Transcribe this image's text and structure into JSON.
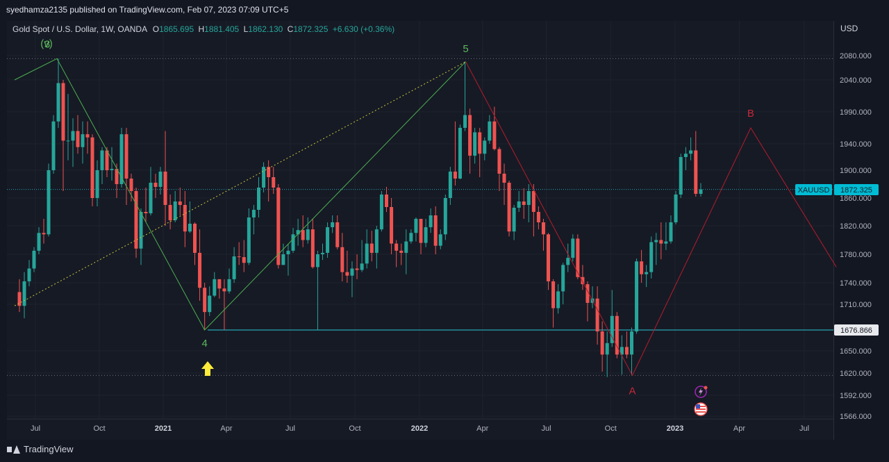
{
  "publisher_line": "syedhamza2135 published on TradingView.com, Feb 07, 2023 07:09 UTC+5",
  "brand": "TradingView",
  "legend": {
    "title": "Gold Spot / U.S. Dollar, 1W, OANDA",
    "o_label": "O",
    "o": "1865.695",
    "h_label": "H",
    "h": "1881.405",
    "l_label": "L",
    "l": "1862.130",
    "c_label": "C",
    "c": "1872.325",
    "change": "+6.630 (+0.36%)"
  },
  "currency": "USD",
  "colors": {
    "up": "#26a69a",
    "down": "#ef5350",
    "grid": "#1e222d",
    "level": "#26c6da",
    "wave_green": "#4caf50",
    "wave_red": "#b71c2c",
    "dotted_yellow": "#c9c93a",
    "arrow": "#ffeb3b",
    "label_bg": "#00bcd4"
  },
  "price_tags": {
    "symbol": "XAUUSD",
    "last": "1872.325",
    "level": "1676.866"
  },
  "icons": [
    "lightning-icon",
    "us-flag-icon",
    "arrow-up-icon",
    "tradingview-logo-icon"
  ],
  "chart_data": {
    "type": "candlestick",
    "symbol": "XAUUSD",
    "interval": "1W",
    "y_ticks": [
      2080,
      2040,
      1990,
      1940,
      1900,
      1860,
      1820,
      1780,
      1740,
      1710,
      1676.866,
      1650,
      1620,
      1592,
      1566
    ],
    "y_tick_labels": [
      "2080.000",
      "2040.000",
      "1990.000",
      "1940.000",
      "1900.000",
      "1860.000",
      "1820.000",
      "1780.000",
      "1740.000",
      "1710.000",
      "1676.866",
      "1650.000",
      "1620.000",
      "1592.000",
      "1566.000"
    ],
    "x_axis": [
      {
        "label": "Jul",
        "date": "2020-07-01",
        "year": false
      },
      {
        "label": "Oct",
        "date": "2020-10-01",
        "year": false
      },
      {
        "label": "2021",
        "date": "2021-01-01",
        "year": true
      },
      {
        "label": "Apr",
        "date": "2021-04-01",
        "year": false
      },
      {
        "label": "Jul",
        "date": "2021-07-01",
        "year": false
      },
      {
        "label": "Oct",
        "date": "2021-10-01",
        "year": false
      },
      {
        "label": "2022",
        "date": "2022-01-01",
        "year": true
      },
      {
        "label": "Apr",
        "date": "2022-04-01",
        "year": false
      },
      {
        "label": "Jul",
        "date": "2022-07-01",
        "year": false
      },
      {
        "label": "Oct",
        "date": "2022-10-01",
        "year": false
      },
      {
        "label": "2023",
        "date": "2023-01-01",
        "year": true
      },
      {
        "label": "Apr",
        "date": "2023-04-01",
        "year": false
      },
      {
        "label": "Jul",
        "date": "2023-07-01",
        "year": false
      }
    ],
    "horizontal_levels": [
      {
        "price": 1676.866,
        "style": "solid",
        "label": "1676.866"
      },
      {
        "price": 1872.325,
        "style": "dotted",
        "label": "1872.325"
      },
      {
        "price": 2075,
        "style": "dotted"
      },
      {
        "price": 1617,
        "style": "dotted"
      }
    ],
    "wave_labels": [
      {
        "text": "3",
        "date": "2020-08-01",
        "price": 2075,
        "color": "green"
      },
      {
        "text": "(v)",
        "date": "2020-08-08",
        "price": 2075,
        "color": "green"
      },
      {
        "text": "4",
        "date": "2021-03-01",
        "price": 1676.866,
        "color": "green"
      },
      {
        "text": "5",
        "date": "2022-03-08",
        "price": 2070,
        "color": "green"
      },
      {
        "text": "A",
        "date": "2022-11-01",
        "price": 1617,
        "color": "red"
      },
      {
        "text": "B",
        "date": "2023-04-17",
        "price": 1965,
        "color": "red"
      }
    ],
    "wave_lines": [
      {
        "color": "green",
        "style": "solid",
        "points": [
          [
            "2020-06-01",
            2040
          ],
          [
            "2020-08-01",
            2075
          ],
          [
            "2021-03-01",
            1676.866
          ],
          [
            "2022-03-08",
            2070
          ]
        ]
      },
      {
        "color": "yellow",
        "style": "dotted",
        "points": [
          [
            "2020-06-01",
            1708
          ],
          [
            "2022-03-08",
            2070
          ]
        ]
      },
      {
        "color": "red",
        "style": "solid",
        "points": [
          [
            "2022-03-08",
            2070
          ],
          [
            "2022-11-01",
            1617
          ],
          [
            "2023-04-17",
            1965
          ],
          [
            "2023-08-15",
            1762
          ]
        ]
      }
    ],
    "candles": [
      [
        "2020-06-08",
        1727,
        1745,
        1700,
        1708
      ],
      [
        "2020-06-15",
        1708,
        1755,
        1692,
        1742
      ],
      [
        "2020-06-22",
        1742,
        1772,
        1735,
        1760
      ],
      [
        "2020-06-29",
        1760,
        1790,
        1755,
        1785
      ],
      [
        "2020-07-06",
        1785,
        1818,
        1780,
        1810
      ],
      [
        "2020-07-13",
        1810,
        1830,
        1795,
        1808
      ],
      [
        "2020-07-20",
        1808,
        1910,
        1805,
        1900
      ],
      [
        "2020-07-27",
        1900,
        1985,
        1895,
        1975
      ],
      [
        "2020-08-03",
        1975,
        2075,
        1965,
        2035
      ],
      [
        "2020-08-10",
        2035,
        2040,
        1870,
        1945
      ],
      [
        "2020-08-17",
        1945,
        2018,
        1915,
        1945
      ],
      [
        "2020-08-24",
        1945,
        1980,
        1905,
        1960
      ],
      [
        "2020-08-31",
        1960,
        1985,
        1925,
        1935
      ],
      [
        "2020-09-07",
        1935,
        1975,
        1910,
        1955
      ],
      [
        "2020-09-14",
        1955,
        1975,
        1925,
        1950
      ],
      [
        "2020-09-21",
        1950,
        1955,
        1848,
        1860
      ],
      [
        "2020-09-28",
        1860,
        1915,
        1848,
        1900
      ],
      [
        "2020-10-05",
        1900,
        1935,
        1880,
        1930
      ],
      [
        "2020-10-12",
        1930,
        1935,
        1890,
        1900
      ],
      [
        "2020-10-19",
        1900,
        1935,
        1885,
        1902
      ],
      [
        "2020-10-26",
        1902,
        1910,
        1860,
        1880
      ],
      [
        "2020-11-02",
        1880,
        1965,
        1875,
        1955
      ],
      [
        "2020-11-09",
        1955,
        1965,
        1850,
        1888
      ],
      [
        "2020-11-16",
        1888,
        1895,
        1855,
        1870
      ],
      [
        "2020-11-23",
        1870,
        1875,
        1775,
        1788
      ],
      [
        "2020-11-30",
        1788,
        1845,
        1765,
        1840
      ],
      [
        "2020-12-07",
        1840,
        1875,
        1825,
        1838
      ],
      [
        "2020-12-14",
        1838,
        1905,
        1835,
        1882
      ],
      [
        "2020-12-21",
        1882,
        1895,
        1860,
        1876
      ],
      [
        "2020-12-28",
        1876,
        1905,
        1865,
        1898
      ],
      [
        "2021-01-04",
        1898,
        1960,
        1820,
        1850
      ],
      [
        "2021-01-11",
        1850,
        1865,
        1815,
        1828
      ],
      [
        "2021-01-18",
        1828,
        1870,
        1825,
        1855
      ],
      [
        "2021-01-25",
        1855,
        1875,
        1835,
        1850
      ],
      [
        "2021-02-01",
        1850,
        1870,
        1790,
        1812
      ],
      [
        "2021-02-08",
        1812,
        1855,
        1810,
        1823
      ],
      [
        "2021-02-15",
        1823,
        1825,
        1765,
        1782
      ],
      [
        "2021-02-22",
        1782,
        1815,
        1715,
        1733
      ],
      [
        "2021-03-01",
        1733,
        1740,
        1676.866,
        1700
      ],
      [
        "2021-03-08",
        1700,
        1735,
        1695,
        1722
      ],
      [
        "2021-03-15",
        1722,
        1755,
        1720,
        1745
      ],
      [
        "2021-03-22",
        1745,
        1745,
        1718,
        1732
      ],
      [
        "2021-03-29",
        1732,
        1745,
        1676.866,
        1728
      ],
      [
        "2021-04-05",
        1728,
        1760,
        1725,
        1745
      ],
      [
        "2021-04-12",
        1745,
        1790,
        1740,
        1777
      ],
      [
        "2021-04-19",
        1777,
        1797,
        1765,
        1776
      ],
      [
        "2021-04-26",
        1776,
        1800,
        1755,
        1768
      ],
      [
        "2021-05-03",
        1768,
        1845,
        1765,
        1832
      ],
      [
        "2021-05-10",
        1832,
        1850,
        1808,
        1843
      ],
      [
        "2021-05-17",
        1843,
        1890,
        1832,
        1875
      ],
      [
        "2021-05-24",
        1875,
        1912,
        1868,
        1905
      ],
      [
        "2021-05-31",
        1905,
        1915,
        1855,
        1890
      ],
      [
        "2021-06-07",
        1890,
        1905,
        1866,
        1875
      ],
      [
        "2021-06-14",
        1875,
        1880,
        1760,
        1765
      ],
      [
        "2021-06-21",
        1765,
        1795,
        1765,
        1780
      ],
      [
        "2021-06-28",
        1780,
        1795,
        1750,
        1785
      ],
      [
        "2021-07-05",
        1785,
        1817,
        1782,
        1808
      ],
      [
        "2021-07-12",
        1808,
        1830,
        1792,
        1814
      ],
      [
        "2021-07-19",
        1814,
        1835,
        1790,
        1800
      ],
      [
        "2021-07-26",
        1800,
        1832,
        1795,
        1815
      ],
      [
        "2021-08-02",
        1815,
        1830,
        1760,
        1762
      ],
      [
        "2021-08-09",
        1762,
        1785,
        1676.866,
        1780
      ],
      [
        "2021-08-16",
        1780,
        1795,
        1772,
        1782
      ],
      [
        "2021-08-23",
        1782,
        1825,
        1775,
        1818
      ],
      [
        "2021-08-30",
        1818,
        1835,
        1810,
        1825
      ],
      [
        "2021-09-06",
        1825,
        1835,
        1787,
        1790
      ],
      [
        "2021-09-13",
        1790,
        1810,
        1742,
        1755
      ],
      [
        "2021-09-20",
        1755,
        1785,
        1740,
        1750
      ],
      [
        "2021-09-27",
        1750,
        1770,
        1720,
        1760
      ],
      [
        "2021-10-04",
        1760,
        1780,
        1745,
        1758
      ],
      [
        "2021-10-11",
        1758,
        1800,
        1755,
        1767
      ],
      [
        "2021-10-18",
        1767,
        1815,
        1760,
        1795
      ],
      [
        "2021-10-25",
        1795,
        1813,
        1770,
        1782
      ],
      [
        "2021-11-01",
        1782,
        1820,
        1760,
        1815
      ],
      [
        "2021-11-08",
        1815,
        1870,
        1812,
        1865
      ],
      [
        "2021-11-15",
        1865,
        1876,
        1840,
        1847
      ],
      [
        "2021-11-22",
        1847,
        1860,
        1780,
        1795
      ],
      [
        "2021-11-29",
        1795,
        1800,
        1762,
        1785
      ],
      [
        "2021-12-06",
        1785,
        1795,
        1765,
        1782
      ],
      [
        "2021-12-13",
        1782,
        1815,
        1752,
        1798
      ],
      [
        "2021-12-20",
        1798,
        1815,
        1795,
        1810
      ],
      [
        "2021-12-27",
        1810,
        1832,
        1798,
        1830
      ],
      [
        "2022-01-03",
        1830,
        1830,
        1780,
        1796
      ],
      [
        "2022-01-10",
        1796,
        1830,
        1790,
        1818
      ],
      [
        "2022-01-17",
        1818,
        1845,
        1810,
        1835
      ],
      [
        "2022-01-24",
        1835,
        1848,
        1780,
        1792
      ],
      [
        "2022-01-31",
        1792,
        1815,
        1787,
        1808
      ],
      [
        "2022-02-07",
        1808,
        1865,
        1800,
        1860
      ],
      [
        "2022-02-14",
        1860,
        1905,
        1850,
        1898
      ],
      [
        "2022-02-21",
        1898,
        1975,
        1878,
        1888
      ],
      [
        "2022-02-28",
        1888,
        1970,
        1887,
        1965
      ],
      [
        "2022-03-07",
        1965,
        2070,
        1960,
        1985
      ],
      [
        "2022-03-14",
        1985,
        1995,
        1895,
        1922
      ],
      [
        "2022-03-21",
        1922,
        1965,
        1910,
        1958
      ],
      [
        "2022-03-28",
        1958,
        1965,
        1890,
        1925
      ],
      [
        "2022-04-04",
        1925,
        1950,
        1915,
        1945
      ],
      [
        "2022-04-11",
        1945,
        1985,
        1940,
        1975
      ],
      [
        "2022-04-18",
        1975,
        1998,
        1930,
        1932
      ],
      [
        "2022-04-25",
        1932,
        1935,
        1870,
        1895
      ],
      [
        "2022-05-02",
        1895,
        1910,
        1850,
        1882
      ],
      [
        "2022-05-09",
        1882,
        1885,
        1805,
        1812
      ],
      [
        "2022-05-16",
        1812,
        1850,
        1800,
        1846
      ],
      [
        "2022-05-23",
        1846,
        1870,
        1840,
        1855
      ],
      [
        "2022-05-30",
        1855,
        1874,
        1830,
        1850
      ],
      [
        "2022-06-06",
        1850,
        1880,
        1825,
        1870
      ],
      [
        "2022-06-13",
        1870,
        1880,
        1805,
        1840
      ],
      [
        "2022-06-20",
        1840,
        1848,
        1815,
        1825
      ],
      [
        "2022-06-27",
        1825,
        1830,
        1785,
        1808
      ],
      [
        "2022-07-04",
        1808,
        1810,
        1730,
        1742
      ],
      [
        "2022-07-11",
        1742,
        1745,
        1680,
        1705
      ],
      [
        "2022-07-18",
        1705,
        1738,
        1698,
        1728
      ],
      [
        "2022-07-25",
        1728,
        1768,
        1710,
        1765
      ],
      [
        "2022-08-01",
        1765,
        1795,
        1755,
        1775
      ],
      [
        "2022-08-08",
        1775,
        1808,
        1770,
        1802
      ],
      [
        "2022-08-15",
        1802,
        1808,
        1745,
        1748
      ],
      [
        "2022-08-22",
        1748,
        1765,
        1730,
        1738
      ],
      [
        "2022-08-29",
        1738,
        1742,
        1688,
        1712
      ],
      [
        "2022-09-05",
        1712,
        1735,
        1705,
        1718
      ],
      [
        "2022-09-12",
        1718,
        1735,
        1658,
        1675
      ],
      [
        "2022-09-19",
        1675,
        1688,
        1622,
        1645
      ],
      [
        "2022-09-26",
        1645,
        1675,
        1615,
        1660
      ],
      [
        "2022-10-03",
        1660,
        1730,
        1655,
        1695
      ],
      [
        "2022-10-10",
        1695,
        1700,
        1640,
        1645
      ],
      [
        "2022-10-17",
        1645,
        1670,
        1618,
        1655
      ],
      [
        "2022-10-24",
        1655,
        1675,
        1640,
        1645
      ],
      [
        "2022-10-31",
        1645,
        1680,
        1617,
        1675
      ],
      [
        "2022-11-07",
        1675,
        1774,
        1672,
        1770
      ],
      [
        "2022-11-14",
        1770,
        1786,
        1740,
        1752
      ],
      [
        "2022-11-21",
        1752,
        1765,
        1734,
        1755
      ],
      [
        "2022-11-28",
        1755,
        1805,
        1746,
        1797
      ],
      [
        "2022-12-05",
        1797,
        1810,
        1765,
        1800
      ],
      [
        "2022-12-12",
        1800,
        1825,
        1773,
        1795
      ],
      [
        "2022-12-19",
        1795,
        1825,
        1786,
        1798
      ],
      [
        "2022-12-26",
        1798,
        1835,
        1795,
        1825
      ],
      [
        "2023-01-02",
        1825,
        1870,
        1822,
        1865
      ],
      [
        "2023-01-09",
        1865,
        1925,
        1860,
        1920
      ],
      [
        "2023-01-16",
        1920,
        1935,
        1900,
        1925
      ],
      [
        "2023-01-23",
        1925,
        1950,
        1915,
        1930
      ],
      [
        "2023-01-30",
        1930,
        1960,
        1862,
        1866
      ],
      [
        "2023-02-06",
        1866,
        1881.405,
        1862.13,
        1872.325
      ]
    ]
  }
}
